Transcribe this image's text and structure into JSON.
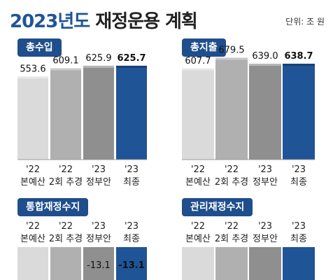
{
  "header": {
    "title_year": "2023년도",
    "title_rest": " 재정운용 계획",
    "unit": "단위: 조 원"
  },
  "colors": {
    "accent": "#1f4e8c",
    "bars": [
      "#dadada",
      "#b0b0b0",
      "#8f8f8f",
      "#1f5597"
    ]
  },
  "chart_data": [
    {
      "type": "bar",
      "title": "총수입",
      "categories": [
        "'22 본예산",
        "'22 2회 추경",
        "'23 정부안",
        "'23 최종"
      ],
      "category_lines": [
        [
          "'22",
          "본예산"
        ],
        [
          "'22",
          "2회 추경"
        ],
        [
          "'23",
          "정부안"
        ],
        [
          "'23",
          "최종"
        ]
      ],
      "values": [
        553.6,
        609.1,
        625.9,
        625.7
      ],
      "value_labels": [
        "553.6",
        "609.1",
        "625.9",
        "625.7"
      ],
      "ylim": [
        0,
        700
      ],
      "grid": false,
      "highlight_index": 3
    },
    {
      "type": "bar",
      "title": "총지출",
      "categories": [
        "'22 본예산",
        "'22 2회 추경",
        "'23 정부안",
        "'23 최종"
      ],
      "category_lines": [
        [
          "'22",
          "본예산"
        ],
        [
          "'22",
          "2회 추경"
        ],
        [
          "'23",
          "정부안"
        ],
        [
          "'23",
          "최종"
        ]
      ],
      "values": [
        607.7,
        679.5,
        639.0,
        638.7
      ],
      "value_labels": [
        "607.7",
        "679.5",
        "639.0",
        "638.7"
      ],
      "ylim": [
        0,
        700
      ],
      "grid": false,
      "highlight_index": 3
    },
    {
      "type": "bar",
      "title": "통합재정수지",
      "categories": [
        "'22 본예산",
        "'22 2회 추경",
        "'23 정부안",
        "'23 최종"
      ],
      "category_lines": [
        [
          "'22",
          "본예산"
        ],
        [
          "'22",
          "2회 추경"
        ],
        [
          "'23",
          "정부안"
        ],
        [
          "'23",
          "최종"
        ]
      ],
      "values": [
        null,
        null,
        -13.1,
        -13.1
      ],
      "value_labels": [
        "",
        "",
        "-13.1",
        "-13.1"
      ],
      "grid": false,
      "highlight_index": 3
    },
    {
      "type": "bar",
      "title": "관리재정수지",
      "categories": [
        "'22 본예산",
        "'22 2회 추경",
        "'23 정부안",
        "'23 최종"
      ],
      "category_lines": [
        [
          "'22",
          "본예산"
        ],
        [
          "'22",
          "2회 추경"
        ],
        [
          "'23",
          "정부안"
        ],
        [
          "'23",
          "최종"
        ]
      ],
      "values": [
        null,
        null,
        null,
        null
      ],
      "value_labels": [
        "",
        "",
        "",
        ""
      ],
      "grid": false,
      "highlight_index": 3
    }
  ]
}
